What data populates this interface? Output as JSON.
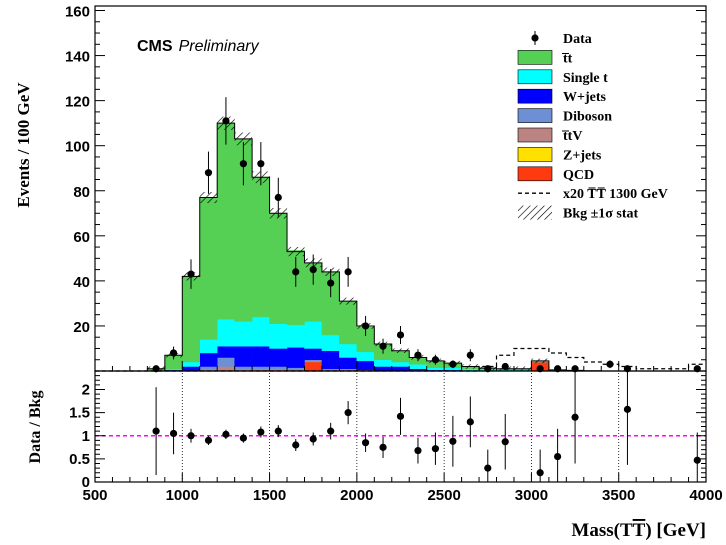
{
  "chart_data": {
    "type": "bar",
    "stacked": true,
    "annotation": {
      "bold": "CMS",
      "italic": "Preliminary"
    },
    "xlabel": "Mass(T̅T̅)  [GeV]",
    "xlabel_parts": {
      "prefix": "Mass(T",
      "bar": "T",
      "suffix": ")  [GeV]"
    },
    "ylabel": "Events / 100 GeV",
    "ratio_ylabel": "Data / Bkg",
    "xlim": [
      500,
      4000
    ],
    "ylim": [
      0,
      162
    ],
    "ratio_ylim": [
      0,
      2.4
    ],
    "x_ticks": [
      "500",
      "1000",
      "1500",
      "2000",
      "2500",
      "3000",
      "3500",
      "4000"
    ],
    "y_ticks": [
      "20",
      "40",
      "60",
      "80",
      "100",
      "120",
      "140",
      "160"
    ],
    "ratio_y_ticks": [
      "0",
      "0.5",
      "1",
      "1.5",
      "2"
    ],
    "bin_edges": [
      500,
      600,
      700,
      800,
      900,
      1000,
      1100,
      1200,
      1300,
      1400,
      1500,
      1600,
      1700,
      1800,
      1900,
      2000,
      2100,
      2200,
      2300,
      2400,
      2500,
      2600,
      2700,
      2800,
      2900,
      3000,
      3100,
      3200,
      3300,
      3400,
      3500,
      3600,
      3700,
      3800,
      3900,
      4000
    ],
    "legend": {
      "placement": "top-right",
      "entries": [
        {
          "label": "Data",
          "style": "marker"
        },
        {
          "label": "t̅t",
          "style": "fill",
          "color": "#55d055"
        },
        {
          "label": "Single t",
          "style": "fill",
          "color": "#00ffff"
        },
        {
          "label": "W+jets",
          "style": "fill",
          "color": "#0000ff"
        },
        {
          "label": "Diboson",
          "style": "fill",
          "color": "#6d8fd3"
        },
        {
          "label": "t̅tV",
          "style": "fill",
          "color": "#bc8383"
        },
        {
          "label": "Z+jets",
          "style": "fill",
          "color": "#ffe000"
        },
        {
          "label": "QCD",
          "style": "fill",
          "color": "#ff3a10"
        },
        {
          "label": "x20  T̅T̅ 1300 GeV",
          "style": "dashed"
        },
        {
          "label": "Bkg  ±1σ stat",
          "style": "hatch"
        }
      ]
    },
    "series": [
      {
        "name": "QCD",
        "color": "#ff3a10",
        "values": [
          0,
          0,
          0,
          0,
          0,
          0,
          0,
          0,
          0,
          0,
          0,
          0,
          4,
          0,
          0,
          0,
          0,
          0,
          0,
          0,
          0,
          0,
          0,
          0,
          0,
          4,
          0,
          0,
          0,
          0,
          0,
          0,
          0,
          0,
          0
        ]
      },
      {
        "name": "Z+jets",
        "color": "#ffe000",
        "values": [
          0,
          0,
          0,
          0,
          0,
          0,
          0,
          0,
          0,
          0,
          0,
          0,
          0,
          0,
          0,
          0,
          0,
          0,
          0,
          0,
          0,
          0,
          0,
          0,
          0,
          0,
          0,
          0,
          0,
          0,
          0,
          0,
          0,
          0,
          0
        ]
      },
      {
        "name": "t̅tV",
        "color": "#bc8383",
        "values": [
          0,
          0,
          0,
          0,
          0,
          0,
          1,
          2,
          1,
          1,
          1,
          0.5,
          0.5,
          0.5,
          0.5,
          0.5,
          0,
          0,
          0,
          0,
          0,
          0,
          0,
          0,
          0,
          0,
          0,
          0,
          0,
          0,
          0,
          0,
          0,
          0,
          0
        ]
      },
      {
        "name": "Diboson",
        "color": "#6d8fd3",
        "values": [
          0,
          0,
          0,
          0,
          0,
          0,
          1,
          4,
          1,
          1,
          1,
          1,
          0.5,
          0.5,
          0.5,
          0,
          0,
          0,
          0,
          0,
          0,
          0,
          0,
          0,
          0,
          0,
          0,
          0,
          0,
          0,
          0,
          0,
          0,
          0,
          0,
          0
        ]
      },
      {
        "name": "W+jets",
        "color": "#0000ff",
        "values": [
          0,
          0,
          0,
          0,
          0.5,
          2,
          6,
          5,
          9,
          9,
          8,
          9,
          5,
          8,
          5,
          4,
          2,
          2,
          1,
          0.5,
          0.5,
          0.3,
          0.3,
          0.2,
          0.2,
          0,
          0,
          0,
          0,
          0,
          0,
          0,
          0,
          0,
          0
        ]
      },
      {
        "name": "Single t",
        "color": "#00ffff",
        "values": [
          0,
          0,
          0,
          0,
          0.5,
          2,
          6,
          12,
          11,
          13,
          11,
          10,
          12,
          7,
          6,
          4,
          3,
          2,
          2,
          1,
          1,
          0.7,
          0.5,
          0.3,
          0.3,
          0.2,
          0.2,
          0.1,
          0,
          0,
          0,
          0,
          0,
          0,
          0
        ]
      },
      {
        "name": "t̅t",
        "color": "#55d055",
        "values": [
          0,
          0,
          0,
          1,
          6,
          38,
          63,
          87,
          81,
          62,
          49,
          33,
          26,
          28,
          19,
          11,
          7,
          5,
          3,
          3,
          2,
          1,
          0.5,
          0.5,
          0.5,
          0.3,
          0.3,
          0.2,
          0.1,
          0,
          0,
          0,
          0,
          0,
          0
        ]
      }
    ],
    "background_total": [
      0,
      0,
      0,
      1,
      7,
      42,
      77,
      110,
      103,
      86,
      70,
      53,
      48,
      44,
      31,
      20,
      12,
      9,
      6,
      4.5,
      3.5,
      2,
      1.3,
      1,
      1,
      4.5,
      0.5,
      0.3,
      0.1,
      0,
      0,
      0,
      0,
      0,
      0
    ],
    "signal_x20": [
      0,
      0,
      0,
      0,
      0,
      0,
      0,
      0,
      0,
      0,
      0,
      0,
      0,
      0,
      0,
      0,
      0,
      0,
      0,
      0,
      0,
      0,
      2,
      7,
      10,
      10,
      8,
      6,
      4,
      3,
      2,
      1,
      1,
      1,
      3
    ],
    "data": [
      {
        "x": 850,
        "y": 1
      },
      {
        "x": 950,
        "y": 8
      },
      {
        "x": 1050,
        "y": 43
      },
      {
        "x": 1150,
        "y": 88
      },
      {
        "x": 1250,
        "y": 111
      },
      {
        "x": 1350,
        "y": 92
      },
      {
        "x": 1450,
        "y": 92
      },
      {
        "x": 1550,
        "y": 77
      },
      {
        "x": 1650,
        "y": 44
      },
      {
        "x": 1750,
        "y": 45
      },
      {
        "x": 1850,
        "y": 39
      },
      {
        "x": 1950,
        "y": 44
      },
      {
        "x": 2050,
        "y": 20
      },
      {
        "x": 2150,
        "y": 11
      },
      {
        "x": 2250,
        "y": 16
      },
      {
        "x": 2350,
        "y": 7
      },
      {
        "x": 2450,
        "y": 5
      },
      {
        "x": 2550,
        "y": 3
      },
      {
        "x": 2650,
        "y": 7
      },
      {
        "x": 2750,
        "y": 1
      },
      {
        "x": 2850,
        "y": 2
      },
      {
        "x": 3050,
        "y": 1
      },
      {
        "x": 3150,
        "y": 1
      },
      {
        "x": 3250,
        "y": 1
      },
      {
        "x": 3450,
        "y": 3
      },
      {
        "x": 3550,
        "y": 1
      },
      {
        "x": 3950,
        "y": 1
      }
    ],
    "ratio": [
      {
        "x": 850,
        "y": 1.1,
        "err": 0.95
      },
      {
        "x": 950,
        "y": 1.05,
        "err": 0.45
      },
      {
        "x": 1050,
        "y": 1.0,
        "err": 0.15
      },
      {
        "x": 1150,
        "y": 0.9,
        "err": 0.1
      },
      {
        "x": 1250,
        "y": 1.03,
        "err": 0.1
      },
      {
        "x": 1350,
        "y": 0.95,
        "err": 0.1
      },
      {
        "x": 1450,
        "y": 1.08,
        "err": 0.12
      },
      {
        "x": 1550,
        "y": 1.1,
        "err": 0.13
      },
      {
        "x": 1650,
        "y": 0.8,
        "err": 0.13
      },
      {
        "x": 1750,
        "y": 0.93,
        "err": 0.14
      },
      {
        "x": 1850,
        "y": 1.1,
        "err": 0.18
      },
      {
        "x": 1950,
        "y": 1.5,
        "err": 0.25
      },
      {
        "x": 2050,
        "y": 0.85,
        "err": 0.2
      },
      {
        "x": 2150,
        "y": 0.75,
        "err": 0.23
      },
      {
        "x": 2250,
        "y": 1.42,
        "err": 0.4
      },
      {
        "x": 2350,
        "y": 0.68,
        "err": 0.28
      },
      {
        "x": 2450,
        "y": 0.72,
        "err": 0.35
      },
      {
        "x": 2550,
        "y": 0.88,
        "err": 0.55
      },
      {
        "x": 2650,
        "y": 1.3,
        "err": 0.55
      },
      {
        "x": 2750,
        "y": 0.3,
        "err": 0.4
      },
      {
        "x": 2850,
        "y": 0.87,
        "err": 0.6
      },
      {
        "x": 3050,
        "y": 0.2,
        "err": 0.5
      },
      {
        "x": 3150,
        "y": 0.55,
        "err": 0.6
      },
      {
        "x": 3250,
        "y": 1.4,
        "err": 1.0
      },
      {
        "x": 3550,
        "y": 1.57,
        "err": 1.2
      },
      {
        "x": 3950,
        "y": 0.47,
        "err": 0.6
      }
    ],
    "ratio_reference": 1
  }
}
